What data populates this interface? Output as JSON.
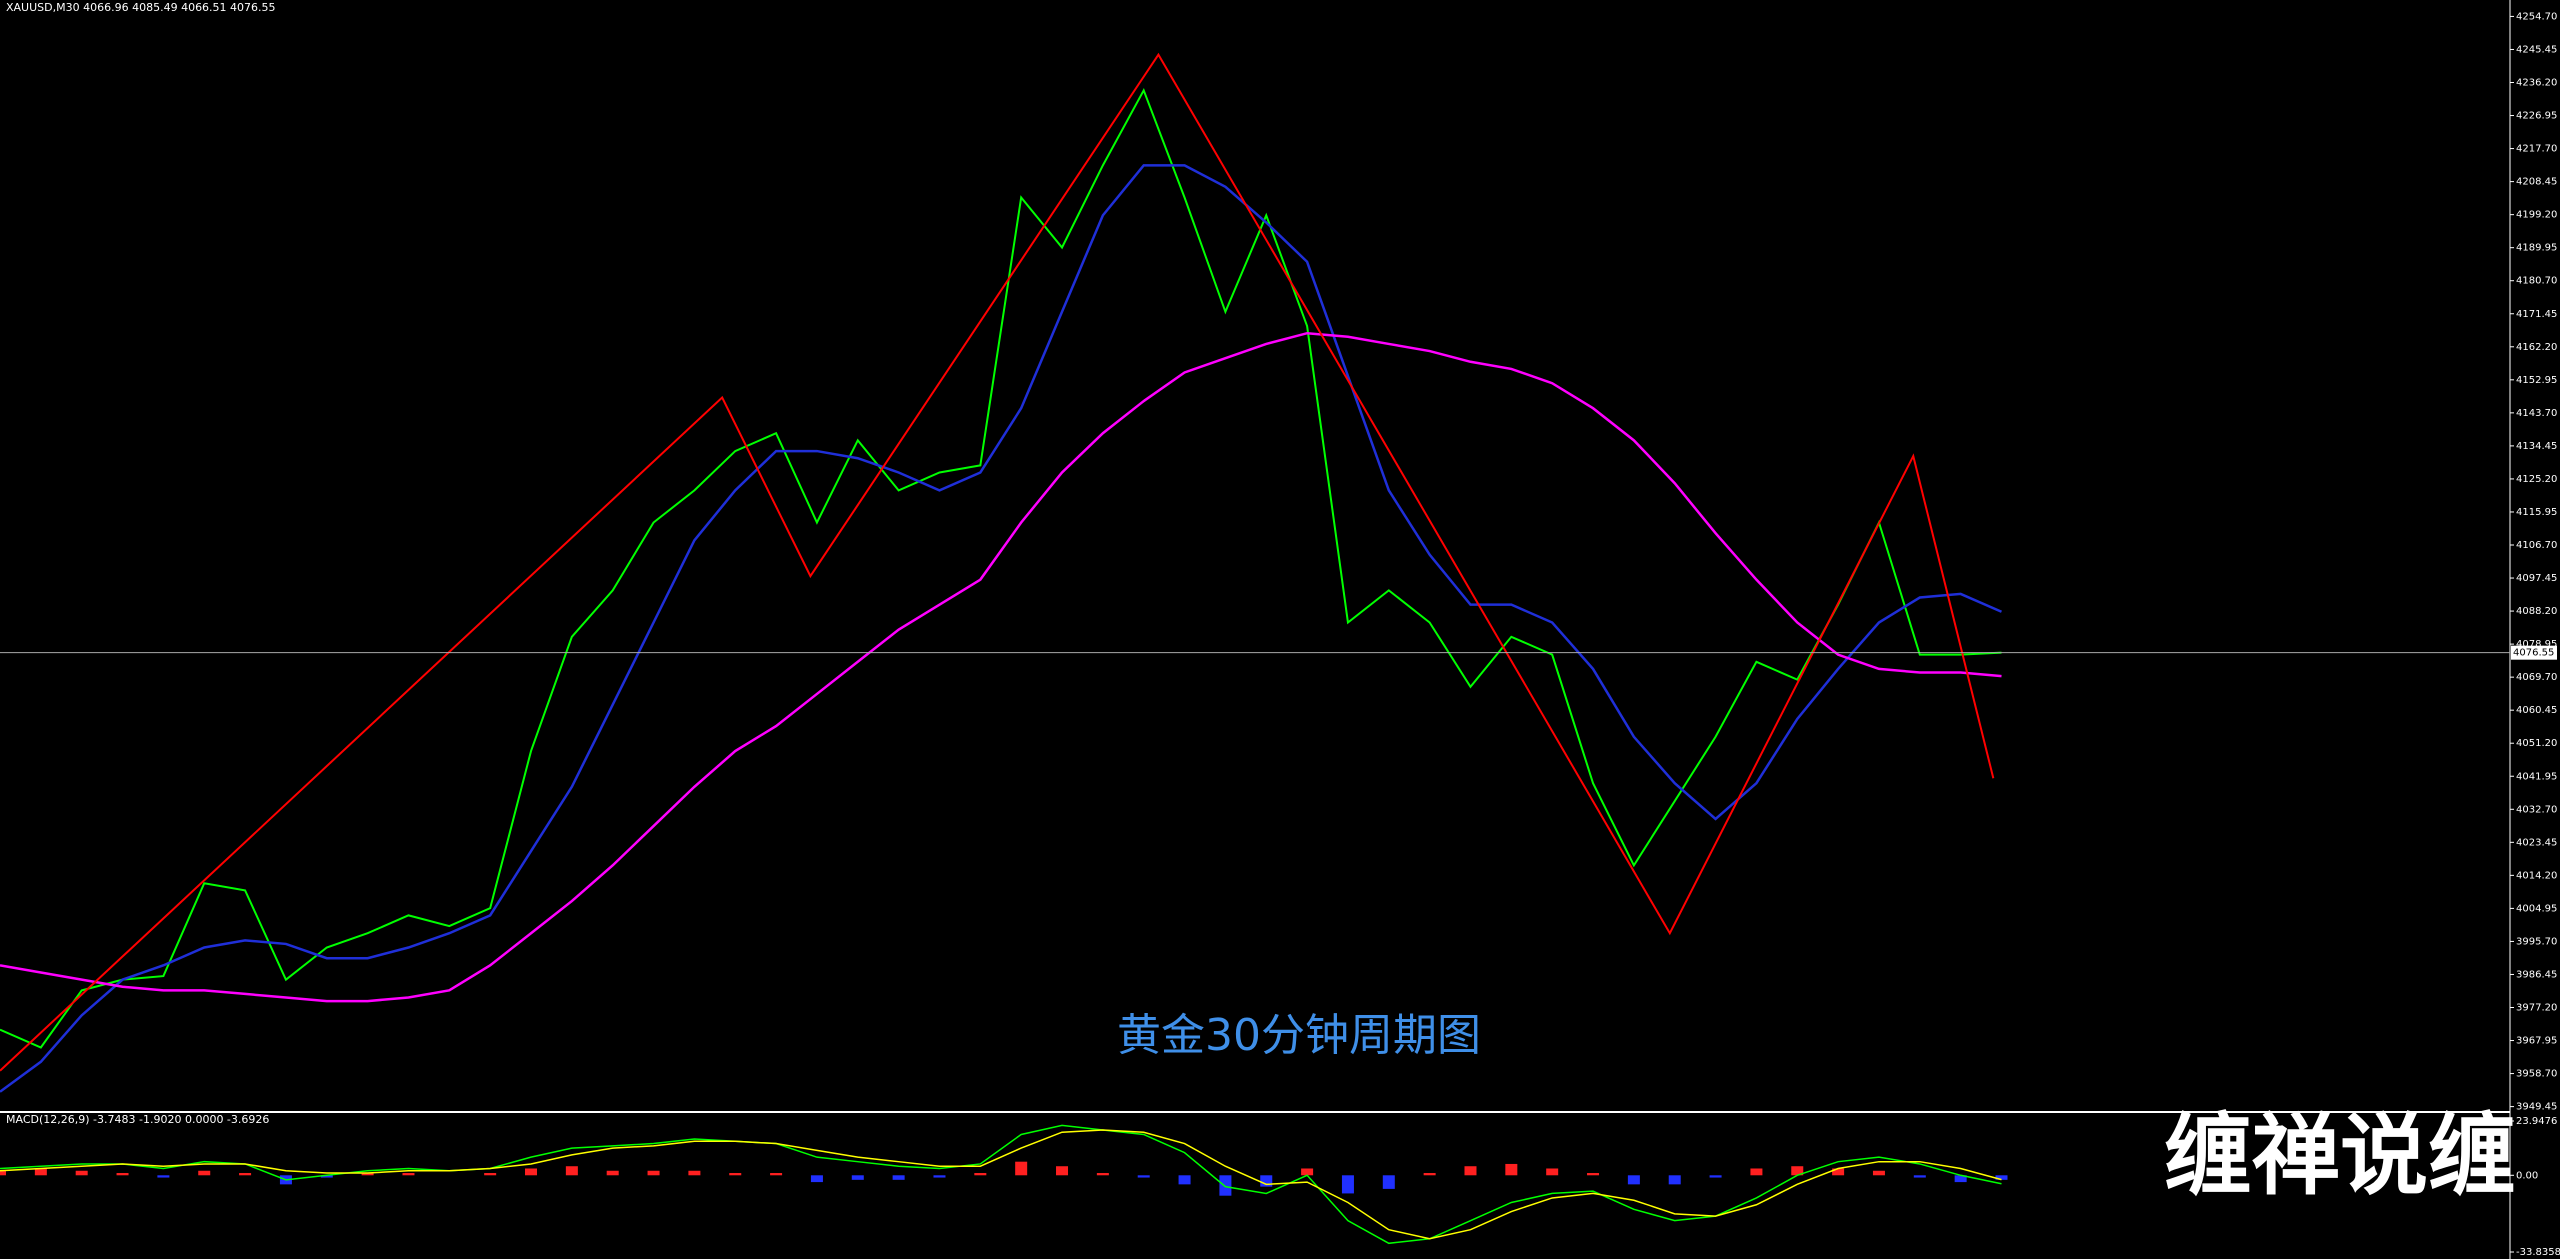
{
  "chart_data": [
    {
      "type": "line",
      "title": "XAUUSD,M30  4066.96 4085.49 4066.51 4076.55",
      "annotation": "黄金30分钟周期图",
      "x": [
        0,
        1,
        2,
        3,
        4,
        5,
        6,
        7,
        8,
        9,
        10,
        11,
        12,
        13,
        14,
        15,
        16,
        17,
        18,
        19,
        20,
        21,
        22,
        23,
        24,
        25,
        26,
        27,
        28,
        29,
        30,
        31,
        32,
        33,
        34,
        35,
        36,
        37,
        38,
        39,
        40,
        41,
        42,
        43,
        44,
        45,
        46,
        47,
        48,
        49
      ],
      "xlim": [
        0,
        61.4
      ],
      "ylim": [
        3948.5,
        4259.3
      ],
      "series": [
        {
          "color": "#00ff00",
          "values": [
            3971,
            3966,
            3982,
            3985,
            3986,
            4012,
            4010,
            3985,
            3994,
            3998,
            4003,
            4000,
            4005,
            4049,
            4081,
            4094,
            4113,
            4122,
            4133,
            4138,
            4113,
            4136,
            4122,
            4127,
            4129,
            4204,
            4190,
            4213,
            4234,
            4204,
            4172,
            4199,
            4168,
            4085,
            4094,
            4085,
            4067,
            4081,
            4076,
            4040,
            4017,
            4035,
            4053,
            4074,
            4069,
            4090,
            4113,
            4076,
            4076,
            4076.55
          ]
        },
        {
          "color": "#1f2fd8",
          "values": [
            3953.6,
            3962,
            3975,
            3985,
            3989,
            3994,
            3996,
            3995,
            3991,
            3991,
            3994,
            3998,
            4003,
            4021,
            4039,
            4062,
            4085,
            4108,
            4122,
            4133,
            4133,
            4131,
            4127,
            4122,
            4127,
            4145,
            4172,
            4199,
            4213,
            4213,
            4207,
            4197,
            4186,
            4154,
            4122,
            4104,
            4090,
            4090,
            4085,
            4072,
            4053,
            4040,
            4030,
            4040,
            4058,
            4072,
            4085,
            4092,
            4093,
            4088
          ]
        },
        {
          "color": "#ff00ff",
          "values": [
            3989,
            3987,
            3985,
            3983,
            3982,
            3982,
            3981,
            3980,
            3979,
            3979,
            3980,
            3982,
            3989,
            3998,
            4007,
            4017,
            4028,
            4039,
            4049,
            4056,
            4065,
            4074,
            4083,
            4090,
            4097,
            4113,
            4127,
            4138,
            4147,
            4155,
            4159,
            4163,
            4166,
            4165,
            4163,
            4161,
            4158,
            4156,
            4152,
            4145,
            4136,
            4124,
            4110,
            4097,
            4085,
            4076,
            4072,
            4071,
            4071,
            4070
          ]
        }
      ],
      "zigzag": {
        "color": "#ff0000",
        "x": [
          0,
          17.68,
          19.84,
          28.36,
          40.88,
          46.84,
          48.8
        ],
        "values": [
          3959.5,
          4148,
          4098,
          4244,
          3998,
          4131.6,
          4041.4
        ]
      },
      "last_price": 4076.55,
      "yticks": [
        {
          "value": 4254.7,
          "label": "4254.70"
        },
        4245.45,
        {
          "value": 4236.2,
          "label": "4236.20"
        },
        4226.95,
        {
          "value": 4217.7,
          "label": "4217.70"
        },
        4208.45,
        {
          "value": 4199.2,
          "label": "4199.20"
        },
        4189.95,
        {
          "value": 4180.7,
          "label": "4180.70"
        },
        4171.45,
        {
          "value": 4162.2,
          "label": "4162.20"
        },
        4152.95,
        {
          "value": 4143.7,
          "label": "4143.70"
        },
        4134.45,
        {
          "value": 4125.2,
          "label": "4125.20"
        },
        4115.95,
        {
          "value": 4106.7,
          "label": "4106.70"
        },
        4097.45,
        {
          "value": 4088.2,
          "label": "4088.20"
        },
        4078.95,
        {
          "value": 4069.7,
          "label": "4069.70"
        },
        4060.45,
        {
          "value": 4051.2,
          "label": "4051.20"
        },
        4041.95,
        {
          "value": 4032.7,
          "label": "4032.70"
        },
        4023.45,
        {
          "value": 4014.2,
          "label": "4014.20"
        },
        4004.95,
        {
          "value": 3995.7,
          "label": "3995.70"
        },
        3986.45,
        {
          "value": 3977.2,
          "label": "3977.20"
        },
        3967.95,
        {
          "value": 3958.7,
          "label": "3958.70"
        },
        3949.45
      ]
    },
    {
      "type": "macd",
      "title": "MACD(12,26,9) -3.7483 -1.9020 0.0000 -3.6926",
      "ylim": [
        -33.8358,
        23.9476
      ],
      "yticks": [
        23.9476,
        {
          "value": 0,
          "label": "0.00"
        },
        -33.8358
      ],
      "histogram": {
        "pos_color": "#ff2020",
        "neg_color": "#2030ff",
        "values": [
          2,
          3,
          2,
          1,
          -1,
          2,
          1,
          -4,
          -1,
          1,
          1,
          0,
          1,
          3,
          4,
          2,
          2,
          2,
          1,
          1,
          -3,
          -2,
          -2,
          -1,
          1,
          6,
          4,
          1,
          -1,
          -4,
          -9,
          -5,
          3,
          -8,
          -6,
          1,
          4,
          5,
          3,
          1,
          -4,
          -4,
          -1,
          3,
          4,
          3,
          2,
          -1,
          -3,
          -2
        ]
      },
      "series": [
        {
          "color": "#00ff00",
          "values": [
            3,
            4,
            5,
            5,
            3,
            6,
            5,
            -2,
            0,
            2,
            3,
            2,
            3,
            8,
            12,
            13,
            14,
            16,
            15,
            14,
            8,
            6,
            4,
            3,
            5,
            18,
            22,
            20,
            18,
            10,
            -5,
            -8,
            0,
            -20,
            -30,
            -28,
            -20,
            -12,
            -8,
            -7,
            -15,
            -20,
            -18,
            -10,
            0,
            6,
            8,
            5,
            0,
            -3.7483
          ]
        },
        {
          "color": "#ffff00",
          "values": [
            2,
            3,
            4,
            5,
            4,
            5,
            5,
            2,
            1,
            1,
            2,
            2,
            3,
            5,
            9,
            12,
            13,
            15,
            15,
            14,
            11,
            8,
            6,
            4,
            4,
            12,
            19,
            20,
            19,
            14,
            4,
            -4,
            -3,
            -12,
            -24,
            -28,
            -24,
            -16,
            -10,
            -8,
            -11,
            -17,
            -18,
            -13,
            -4,
            3,
            6,
            6,
            3,
            -1.902
          ]
        }
      ]
    }
  ],
  "watermark": "缠禅说缠"
}
